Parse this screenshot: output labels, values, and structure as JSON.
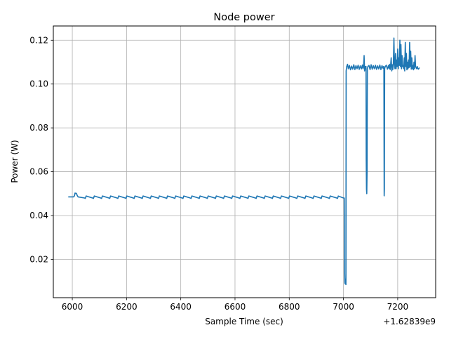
{
  "chart_data": {
    "type": "line",
    "title": "Node power",
    "xlabel": "Sample Time (sec)",
    "ylabel": "Power (W)",
    "x_offset_label": "+1.62839e9",
    "grid": true,
    "xlim": [
      5930,
      7340
    ],
    "ylim": [
      0.0025,
      0.1265
    ],
    "x_ticks": [
      6000,
      6200,
      6400,
      6600,
      6800,
      7000,
      7200
    ],
    "y_ticks": [
      0.02,
      0.04,
      0.06,
      0.08,
      0.1,
      0.12
    ],
    "x_tick_labels": [
      "6000",
      "6200",
      "6400",
      "6600",
      "6800",
      "7000",
      "7200"
    ],
    "y_tick_labels": [
      "0.02",
      "0.04",
      "0.06",
      "0.08",
      "0.10",
      "0.12"
    ],
    "series": [
      {
        "color": "#1f77b4",
        "x": [
          5985,
          6005,
          6008,
          6010,
          6015,
          6018,
          6021,
          6045,
          6048,
          6051,
          6075,
          6078,
          6081,
          6105,
          6108,
          6111,
          6135,
          6138,
          6141,
          6165,
          6168,
          6171,
          6195,
          6198,
          6201,
          6225,
          6228,
          6231,
          6255,
          6258,
          6261,
          6285,
          6288,
          6291,
          6315,
          6318,
          6321,
          6345,
          6348,
          6351,
          6375,
          6378,
          6381,
          6405,
          6408,
          6411,
          6435,
          6438,
          6441,
          6465,
          6468,
          6471,
          6495,
          6498,
          6501,
          6525,
          6528,
          6531,
          6555,
          6558,
          6561,
          6585,
          6588,
          6591,
          6615,
          6618,
          6621,
          6645,
          6648,
          6651,
          6675,
          6678,
          6681,
          6705,
          6708,
          6711,
          6735,
          6738,
          6741,
          6765,
          6768,
          6771,
          6795,
          6798,
          6801,
          6825,
          6828,
          6831,
          6855,
          6858,
          6861,
          6885,
          6888,
          6891,
          6915,
          6918,
          6921,
          6945,
          6948,
          6951,
          6975,
          6978,
          6981,
          7000,
          7003,
          7004,
          7005,
          7006,
          7007,
          7008,
          7009,
          7010,
          7012,
          7015,
          7018,
          7022,
          7026,
          7030,
          7034,
          7038,
          7042,
          7046,
          7050,
          7054,
          7058,
          7062,
          7066,
          7070,
          7072,
          7074,
          7076,
          7078,
          7080,
          7082,
          7083,
          7084,
          7085,
          7086,
          7087,
          7088,
          7090,
          7094,
          7098,
          7102,
          7106,
          7110,
          7114,
          7118,
          7122,
          7126,
          7130,
          7134,
          7138,
          7142,
          7146,
          7148,
          7149,
          7150,
          7151,
          7152,
          7154,
          7158,
          7162,
          7166,
          7168,
          7170,
          7172,
          7174,
          7176,
          7178,
          7180,
          7182,
          7184,
          7186,
          7188,
          7190,
          7192,
          7194,
          7196,
          7198,
          7200,
          7202,
          7204,
          7206,
          7208,
          7210,
          7212,
          7214,
          7216,
          7218,
          7220,
          7222,
          7224,
          7226,
          7228,
          7230,
          7232,
          7234,
          7236,
          7238,
          7240,
          7242,
          7244,
          7246,
          7248,
          7250,
          7252,
          7254,
          7256,
          7258,
          7260,
          7262,
          7264,
          7266,
          7268,
          7270,
          7272,
          7274,
          7276,
          7278,
          7280
        ],
        "y": [
          0.0485,
          0.0485,
          0.049,
          0.0502,
          0.0501,
          0.0492,
          0.0485,
          0.048,
          0.0478,
          0.0489,
          0.048,
          0.0478,
          0.0489,
          0.048,
          0.0478,
          0.0489,
          0.048,
          0.0478,
          0.0489,
          0.048,
          0.0478,
          0.0489,
          0.048,
          0.0478,
          0.0489,
          0.048,
          0.0478,
          0.0489,
          0.048,
          0.0478,
          0.0489,
          0.048,
          0.0478,
          0.0489,
          0.048,
          0.0478,
          0.0489,
          0.048,
          0.0478,
          0.0489,
          0.048,
          0.0478,
          0.0489,
          0.048,
          0.0478,
          0.0489,
          0.048,
          0.0478,
          0.0489,
          0.048,
          0.0478,
          0.0489,
          0.048,
          0.0478,
          0.0489,
          0.048,
          0.0478,
          0.0489,
          0.048,
          0.0478,
          0.0489,
          0.048,
          0.0478,
          0.0489,
          0.048,
          0.0478,
          0.0489,
          0.048,
          0.0478,
          0.0489,
          0.048,
          0.0478,
          0.0489,
          0.048,
          0.0478,
          0.0489,
          0.048,
          0.0478,
          0.0489,
          0.048,
          0.0478,
          0.0489,
          0.048,
          0.0478,
          0.0489,
          0.048,
          0.0478,
          0.0489,
          0.048,
          0.0478,
          0.0489,
          0.048,
          0.0478,
          0.0489,
          0.048,
          0.0478,
          0.0489,
          0.048,
          0.0478,
          0.0489,
          0.048,
          0.0478,
          0.0489,
          0.048,
          0.048,
          0.015,
          0.0095,
          0.0088,
          0.011,
          0.009,
          0.0085,
          0.106,
          0.108,
          0.109,
          0.107,
          0.1085,
          0.1065,
          0.1082,
          0.1068,
          0.1088,
          0.1066,
          0.1084,
          0.107,
          0.1086,
          0.1067,
          0.1083,
          0.1069,
          0.1087,
          0.107,
          0.108,
          0.113,
          0.106,
          0.108,
          0.107,
          0.108,
          0.066,
          0.052,
          0.05,
          0.06,
          0.107,
          0.108,
          0.1085,
          0.1066,
          0.1088,
          0.1068,
          0.1084,
          0.107,
          0.1086,
          0.1067,
          0.1083,
          0.1069,
          0.1087,
          0.1066,
          0.1084,
          0.1072,
          0.108,
          0.107,
          0.049,
          0.052,
          0.107,
          0.108,
          0.1086,
          0.1068,
          0.1084,
          0.1072,
          0.109,
          0.1066,
          0.1086,
          0.112,
          0.106,
          0.1088,
          0.1066,
          0.1095,
          0.121,
          0.109,
          0.107,
          0.114,
          0.107,
          0.111,
          0.108,
          0.116,
          0.107,
          0.112,
          0.1085,
          0.12,
          0.108,
          0.118,
          0.107,
          0.113,
          0.108,
          0.1085,
          0.107,
          0.112,
          0.106,
          0.119,
          0.108,
          0.114,
          0.1065,
          0.11,
          0.107,
          0.111,
          0.1075,
          0.119,
          0.108,
          0.115,
          0.1068,
          0.112,
          0.107,
          0.1085,
          0.1065,
          0.11,
          0.107,
          0.113,
          0.108,
          0.1075,
          0.107,
          0.108,
          0.1072,
          0.1068,
          0.107,
          0.1075
        ]
      }
    ]
  }
}
